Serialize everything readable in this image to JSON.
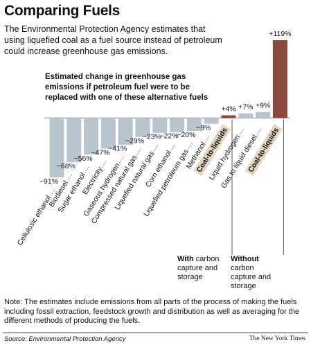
{
  "title": "Comparing Fuels",
  "subtitle": [
    "The Environmental Protection Agency estimates that",
    "using liquefied coal as a fuel source instead of petroleum",
    "could increase greenhouse gas emissions."
  ],
  "chart_data": {
    "type": "bar",
    "annotation": [
      "Estimated change in greenhouse gas",
      "emissions if petroleum fuel were to be",
      "replaced with one of these alternative fuels"
    ],
    "categories": [
      "Cellulosic ethanol",
      "Biodiesel",
      "Sugar ethanol",
      "Electricity",
      "Gaseous hydrogen",
      "Compressed natural gas",
      "Liquefied natural gas",
      "Corn ethanol",
      "Liquefied petroleum gas",
      "Methanol",
      "Coal-to-liquids",
      "Liquid hydrogen",
      "Gas to liquid diesel",
      "Coal-to-liquids"
    ],
    "values": [
      -91,
      -68,
      -56,
      -47,
      -41,
      -29,
      -23,
      -22,
      -20,
      -9,
      4,
      7,
      9,
      119
    ],
    "value_labels": [
      "−91%",
      "−68%",
      "−56%",
      "−47%",
      "−41%",
      "−29%",
      "−23%",
      "−22%",
      "−20%",
      "−9%",
      "+4%",
      "+7%",
      "+9%",
      "+119%"
    ],
    "colors": [
      "#b9c5cd",
      "#b9c5cd",
      "#b9c5cd",
      "#b9c5cd",
      "#b9c5cd",
      "#b9c5cd",
      "#b9c5cd",
      "#b9c5cd",
      "#b9c5cd",
      "#b9c5cd",
      "#8c4a3e",
      "#b9c5cd",
      "#b9c5cd",
      "#8c4a3e"
    ],
    "with_note": {
      "lead": "With",
      "rest": "carbon capture and storage"
    },
    "without_note": {
      "lead": "Without",
      "rest": "carbon capture and storage"
    }
  },
  "note": "Note: The estimates include emissions from all parts of the process of making the fuels including fossil extraction, feedstock growth and distribution as well as averaging for the different methods of producing the fuels.",
  "source": "Source: Environmental Protection Agency",
  "credit": "The New York Times"
}
